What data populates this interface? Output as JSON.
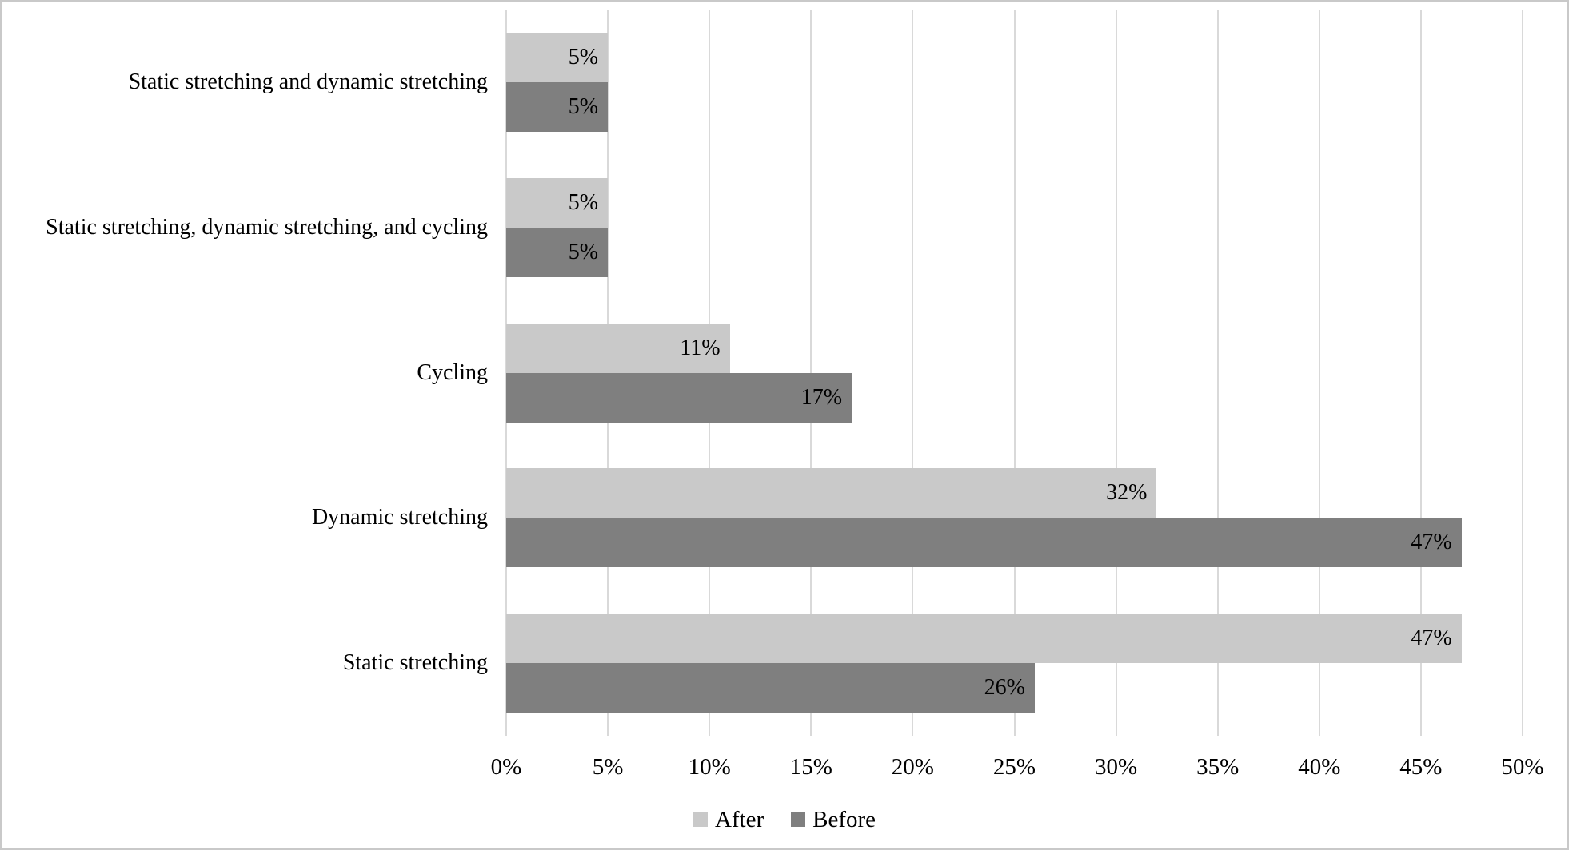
{
  "chart_data": {
    "type": "bar",
    "orientation": "horizontal",
    "title": "",
    "categories": [
      "Static stretching and dynamic stretching",
      "Static stretching, dynamic stretching, and cycling",
      "Cycling",
      "Dynamic stretching",
      "Static stretching"
    ],
    "series": [
      {
        "name": "After",
        "color": "#c9c9c9",
        "values": [
          5,
          5,
          11,
          32,
          47
        ],
        "labels": [
          "5%",
          "5%",
          "11%",
          "32%",
          "47%"
        ]
      },
      {
        "name": "Before",
        "color": "#7f7f7f",
        "values": [
          5,
          5,
          17,
          47,
          26
        ],
        "labels": [
          "5%",
          "5%",
          "17%",
          "47%",
          "26%"
        ]
      }
    ],
    "value_axis": {
      "min": 0,
      "max": 50,
      "step": 5,
      "tick_labels": [
        "0%",
        "5%",
        "10%",
        "15%",
        "20%",
        "25%",
        "30%",
        "35%",
        "40%",
        "45%",
        "50%"
      ]
    },
    "data_label_position": "inside-end",
    "grid": true,
    "legend": {
      "position": "bottom",
      "entries": [
        {
          "label": "After"
        },
        {
          "label": "Before"
        }
      ]
    },
    "colors": {
      "gridline": "#d9d9d9",
      "text": "#000000",
      "background": "#ffffff",
      "border": "#c9c9c9"
    }
  }
}
